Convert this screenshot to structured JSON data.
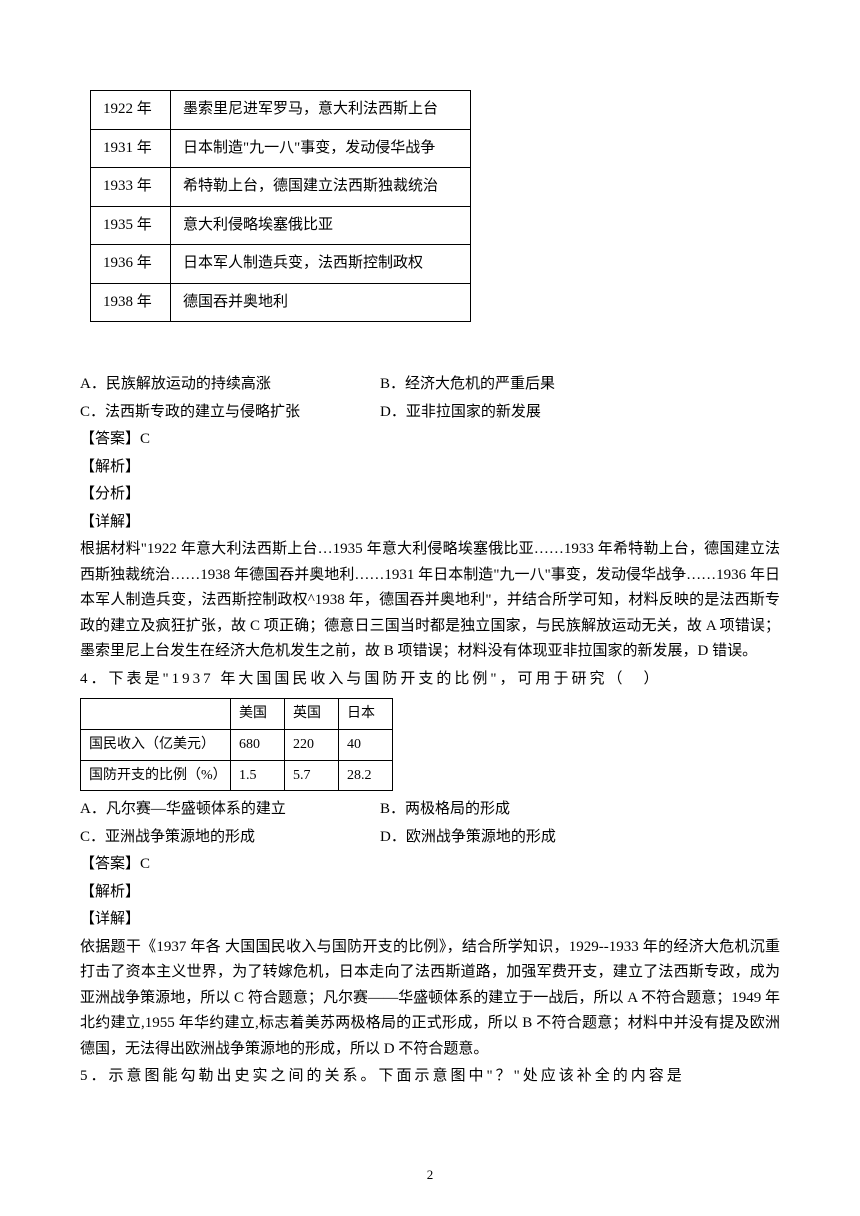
{
  "events_table": {
    "rows": [
      {
        "year": "1922 年",
        "desc": "墨索里尼进军罗马，意大利法西斯上台"
      },
      {
        "year": "1931 年",
        "desc": "日本制造\"九一八\"事变，发动侵华战争"
      },
      {
        "year": "1933 年",
        "desc": "希特勒上台，德国建立法西斯独裁统治"
      },
      {
        "year": "1935 年",
        "desc": "意大利侵略埃塞俄比亚"
      },
      {
        "year": "1936 年",
        "desc": "日本军人制造兵变，法西斯控制政权"
      },
      {
        "year": "1938 年",
        "desc": "德国吞并奥地利"
      }
    ]
  },
  "q3": {
    "optA": "A．民族解放运动的持续高涨",
    "optB": "B．经济大危机的严重后果",
    "optC": "C．法西斯专政的建立与侵略扩张",
    "optD": "D．亚非拉国家的新发展",
    "answer": "【答案】C",
    "analysis": "【解析】",
    "fenxi": "【分析】",
    "detail_label": "【详解】",
    "detail": "根据材料\"1922 年意大利法西斯上台…1935 年意大利侵略埃塞俄比亚……1933 年希特勒上台，德国建立法西斯独裁统治……1938 年德国吞并奥地利……1931 年日本制造\"九一八\"事变，发动侵华战争……1936 年日本军人制造兵变，法西斯控制政权^1938 年，德国吞并奥地利\"，并结合所学可知，材料反映的是法西斯专政的建立及疯狂扩张，故 C 项正确；德意日三国当时都是独立国家，与民族解放运动无关，故 A 项错误；墨索里尼上台发生在经济大危机发生之前，故 B 项错误；材料没有体现亚非拉国家的新发展，D 错误。"
  },
  "q4": {
    "stem": "4．下表是\"1937 年大国国民收入与国防开支的比例\"，可用于研究（　）",
    "table": {
      "header": [
        "",
        "美国",
        "英国",
        "日本"
      ],
      "row1": [
        "国民收入（亿美元）",
        "680",
        "220",
        "40"
      ],
      "row2": [
        "国防开支的比例（%）",
        "1.5",
        "5.7",
        "28.2"
      ]
    },
    "optA": "A．凡尔赛—华盛顿体系的建立",
    "optB": "B．两极格局的形成",
    "optC": "C．亚洲战争策源地的形成",
    "optD": "D．欧洲战争策源地的形成",
    "answer": "【答案】C",
    "analysis": "【解析】",
    "detail_label": "【详解】",
    "detail": "依据题干《1937 年各 大国国民收入与国防开支的比例》，结合所学知识，1929--1933 年的经济大危机沉重打击了资本主义世界，为了转嫁危机，日本走向了法西斯道路，加强军费开支，建立了法西斯专政，成为亚洲战争策源地，所以 C 符合题意；凡尔赛——华盛顿体系的建立于一战后，所以 A 不符合题意；1949 年北约建立,1955 年华约建立,标志着美苏两极格局的正式形成，所以 B 不符合题意；材料中并没有提及欧洲德国，无法得出欧洲战争策源地的形成，所以 D 不符合题意。"
  },
  "q5": {
    "stem": "5．示意图能勾勒出史实之间的关系。下面示意图中\"？\"处应该补全的内容是"
  },
  "page_number": "2"
}
